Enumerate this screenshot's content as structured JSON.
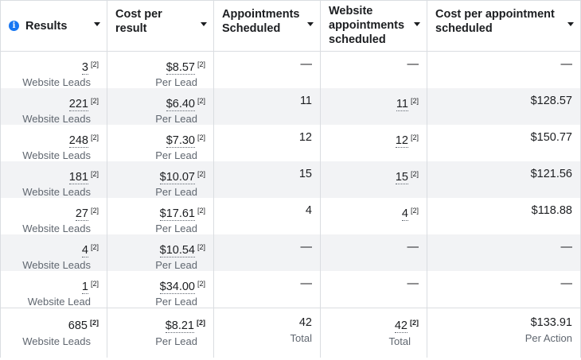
{
  "headers": {
    "results": "Results",
    "cost_per_result": "Cost per result",
    "appointments_scheduled": "Appointments Scheduled",
    "website_appointments": "Website appointments scheduled",
    "cost_per_appointment": "Cost per appointment scheduled"
  },
  "icons": {
    "info": "info-icon",
    "caret": "caret-down-icon"
  },
  "rows": [
    {
      "results": "3",
      "results_note": "[2]",
      "results_label": "Website Leads",
      "cost": "$8.57",
      "cost_note": "[2]",
      "cost_label": "Per Lead",
      "appointments": "—",
      "web_appointments": "—",
      "web_note": "",
      "cost_per_appointment": "—"
    },
    {
      "results": "221",
      "results_note": "[2]",
      "results_label": "Website Leads",
      "cost": "$6.40",
      "cost_note": "[2]",
      "cost_label": "Per Lead",
      "appointments": "11",
      "web_appointments": "11",
      "web_note": "[2]",
      "cost_per_appointment": "$128.57"
    },
    {
      "results": "248",
      "results_note": "[2]",
      "results_label": "Website Leads",
      "cost": "$7.30",
      "cost_note": "[2]",
      "cost_label": "Per Lead",
      "appointments": "12",
      "web_appointments": "12",
      "web_note": "[2]",
      "cost_per_appointment": "$150.77"
    },
    {
      "results": "181",
      "results_note": "[2]",
      "results_label": "Website Leads",
      "cost": "$10.07",
      "cost_note": "[2]",
      "cost_label": "Per Lead",
      "appointments": "15",
      "web_appointments": "15",
      "web_note": "[2]",
      "cost_per_appointment": "$121.56"
    },
    {
      "results": "27",
      "results_note": "[2]",
      "results_label": "Website Leads",
      "cost": "$17.61",
      "cost_note": "[2]",
      "cost_label": "Per Lead",
      "appointments": "4",
      "web_appointments": "4",
      "web_note": "[2]",
      "cost_per_appointment": "$118.88"
    },
    {
      "results": "4",
      "results_note": "[2]",
      "results_label": "Website Leads",
      "cost": "$10.54",
      "cost_note": "[2]",
      "cost_label": "Per Lead",
      "appointments": "—",
      "web_appointments": "—",
      "web_note": "",
      "cost_per_appointment": "—"
    },
    {
      "results": "1",
      "results_note": "[2]",
      "results_label": "Website Lead",
      "cost": "$34.00",
      "cost_note": "[2]",
      "cost_label": "Per Lead",
      "appointments": "—",
      "web_appointments": "—",
      "web_note": "",
      "cost_per_appointment": "—"
    }
  ],
  "totals": {
    "results": "685",
    "results_note": "[2]",
    "results_label": "Website Leads",
    "cost": "$8.21",
    "cost_note": "[2]",
    "cost_label": "Per Lead",
    "appointments": "42",
    "appointments_label": "Total",
    "web_appointments": "42",
    "web_note": "[2]",
    "web_label": "Total",
    "cost_per_appointment": "$133.91",
    "cost_per_appointment_label": "Per Action"
  }
}
